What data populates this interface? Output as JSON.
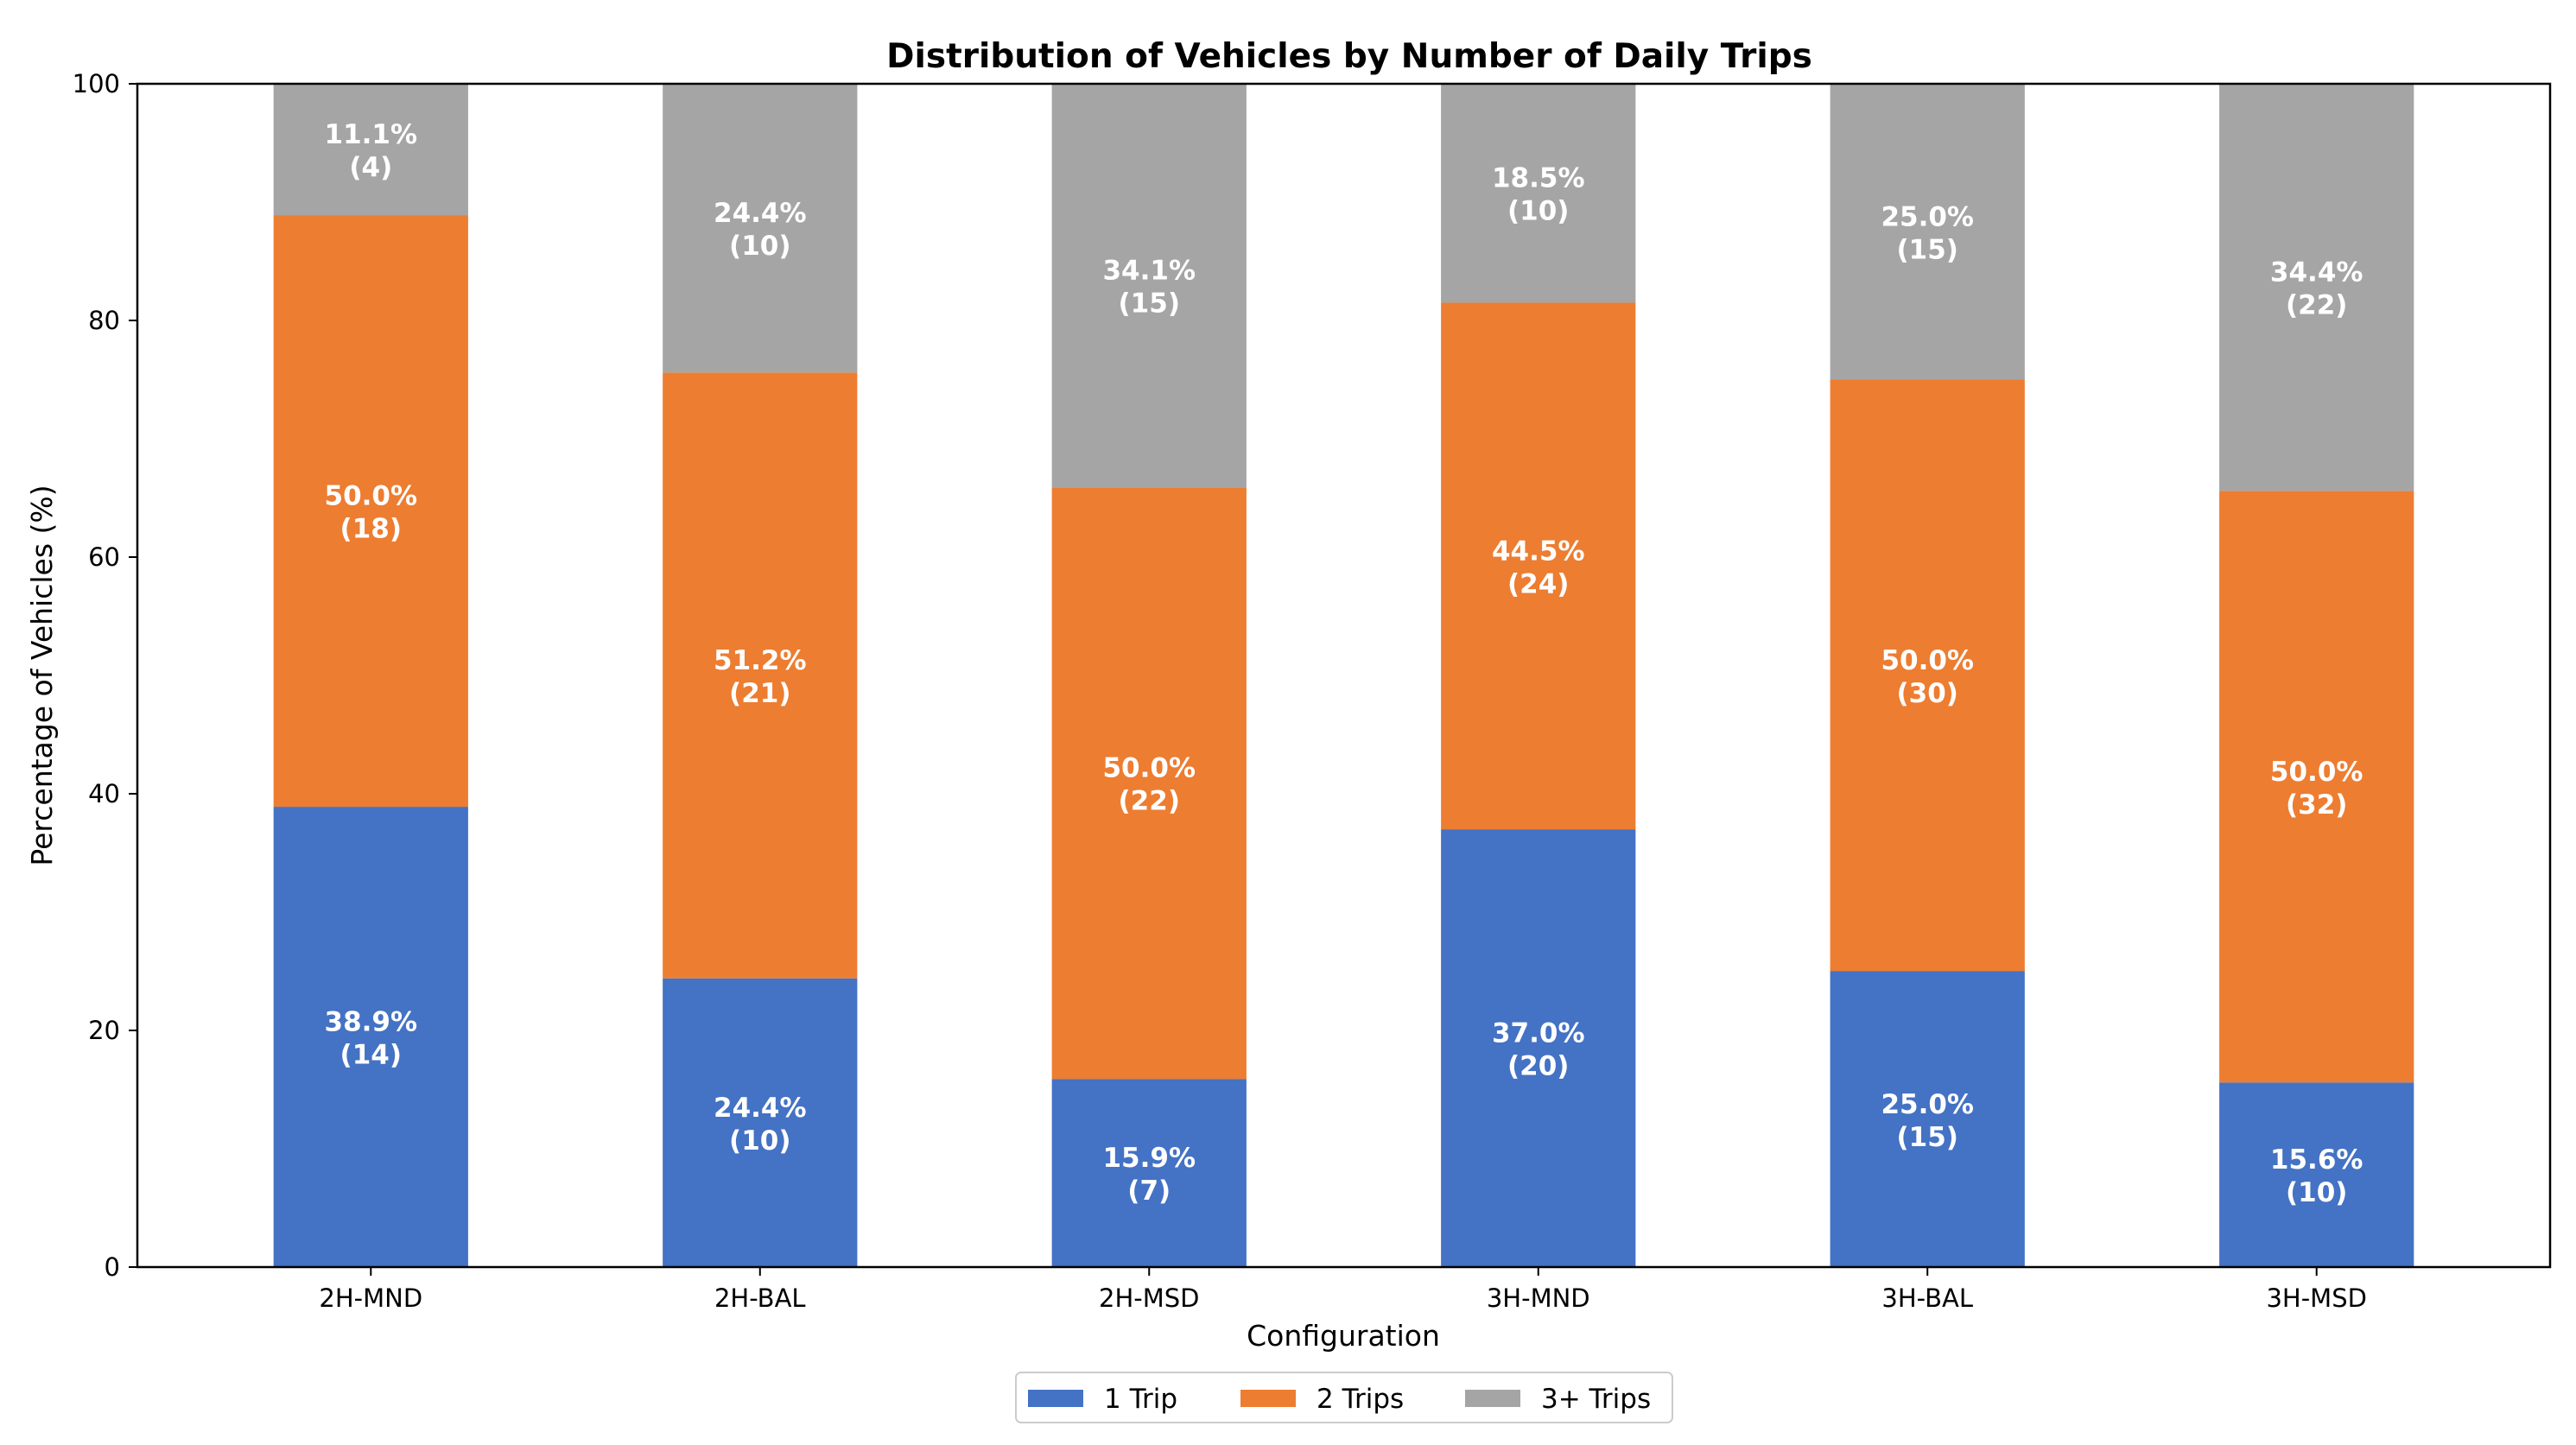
{
  "chart_data": {
    "type": "bar",
    "stacked": true,
    "title": "Distribution of Vehicles by Number of Daily Trips",
    "xlabel": "Configuration",
    "ylabel": "Percentage of Vehicles (%)",
    "ylim": [
      0,
      100
    ],
    "yticks": [
      "0",
      "20",
      "40",
      "60",
      "80",
      "100"
    ],
    "categories": [
      "2H-MND",
      "2H-BAL",
      "2H-MSD",
      "3H-MND",
      "3H-BAL",
      "3H-MSD"
    ],
    "series": [
      {
        "name": "1 Trip",
        "color": "#4472c4",
        "values": [
          38.9,
          24.4,
          15.9,
          37.0,
          25.0,
          15.6
        ],
        "labels": [
          "38.9%",
          "24.4%",
          "15.9%",
          "37.0%",
          "25.0%",
          "15.6%"
        ],
        "counts": [
          "(14)",
          "(10)",
          "(7)",
          "(20)",
          "(15)",
          "(10)"
        ]
      },
      {
        "name": "2 Trips",
        "color": "#ed7d31",
        "values": [
          50.0,
          51.2,
          50.0,
          44.5,
          50.0,
          50.0
        ],
        "labels": [
          "50.0%",
          "51.2%",
          "50.0%",
          "44.5%",
          "50.0%",
          "50.0%"
        ],
        "counts": [
          "(18)",
          "(21)",
          "(22)",
          "(24)",
          "(30)",
          "(32)"
        ]
      },
      {
        "name": "3+ Trips",
        "color": "#a5a5a5",
        "values": [
          11.1,
          24.4,
          34.1,
          18.5,
          25.0,
          34.4
        ],
        "labels": [
          "11.1%",
          "24.4%",
          "34.1%",
          "18.5%",
          "25.0%",
          "34.4%"
        ],
        "counts": [
          "(4)",
          "(10)",
          "(15)",
          "(10)",
          "(15)",
          "(22)"
        ]
      }
    ],
    "legend_position": "bottom-center"
  }
}
